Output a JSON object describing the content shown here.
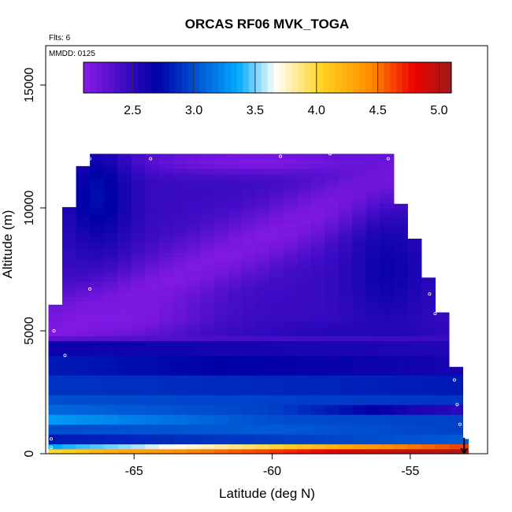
{
  "chart_data": {
    "type": "heatmap",
    "title": "ORCAS RF06 MVK_TOGA",
    "annotations": [
      "Flts: 6",
      "MMDD: 0125"
    ],
    "xlabel": "Latitude (deg N)",
    "ylabel": "Altitude (m)",
    "xlim": [
      -68.2,
      -52.2
    ],
    "ylim": [
      0,
      16600
    ],
    "x_ticks": [
      -65,
      -60,
      -55
    ],
    "x_tick_labels": [
      "-65",
      "-60",
      "-55"
    ],
    "y_ticks": [
      0,
      5000,
      10000,
      15000
    ],
    "y_tick_labels": [
      "0",
      "5000",
      "10000",
      "15000"
    ],
    "colorbar": {
      "range": [
        2.1,
        5.1
      ],
      "ticks": [
        2.5,
        3.0,
        3.5,
        4.0,
        4.5,
        5.0
      ],
      "tick_labels": [
        "2.5",
        "3.0",
        "3.5",
        "4.0",
        "4.5",
        "5.0"
      ],
      "colors": [
        "#8a1ae8",
        "#0000a8",
        "#00aaff",
        "#ffffff",
        "#ffd21e",
        "#ff8c00",
        "#ee0000",
        "#9e1a1a"
      ]
    },
    "grid": false,
    "domain": {
      "lat_start": -68.1,
      "lat_end": -52.9,
      "cell_lat": 0.5,
      "cell_alt": 200,
      "top_altitude_by_lat": [
        [
          -68.1,
          5000
        ],
        [
          -67.7,
          6700
        ],
        [
          -67.4,
          9800
        ],
        [
          -67.1,
          11200
        ],
        [
          -66.6,
          12200
        ],
        [
          -55.8,
          12200
        ],
        [
          -55.6,
          11000
        ],
        [
          -55.3,
          10000
        ],
        [
          -55.0,
          9200
        ],
        [
          -54.6,
          8000
        ],
        [
          -54.3,
          7000
        ],
        [
          -54.0,
          6200
        ],
        [
          -53.7,
          5300
        ],
        [
          -53.4,
          4000
        ],
        [
          -53.1,
          1200
        ],
        [
          -52.9,
          600
        ]
      ]
    },
    "flight_points": [
      {
        "lat": -66.6,
        "alt": 12000
      },
      {
        "lat": -64.4,
        "alt": 12000
      },
      {
        "lat": -59.7,
        "alt": 12100
      },
      {
        "lat": -57.9,
        "alt": 12200
      },
      {
        "lat": -55.8,
        "alt": 12000
      },
      {
        "lat": -55.5,
        "alt": 11000
      },
      {
        "lat": -66.6,
        "alt": 6700
      },
      {
        "lat": -67.5,
        "alt": 4000
      },
      {
        "lat": -67.9,
        "alt": 5000
      },
      {
        "lat": -54.3,
        "alt": 6500
      },
      {
        "lat": -54.1,
        "alt": 5700
      },
      {
        "lat": -53.4,
        "alt": 3000
      },
      {
        "lat": -53.3,
        "alt": 2000
      },
      {
        "lat": -53.2,
        "alt": 1200
      },
      {
        "lat": -68.0,
        "alt": 600
      },
      {
        "lat": -68.0,
        "alt": 250
      }
    ],
    "altitude_bands": [
      {
        "alt_min": 0,
        "alt_max": 250,
        "values_by_lat": [
          [
            -68,
            4.0
          ],
          [
            -66,
            4.25
          ],
          [
            -63,
            4.45
          ],
          [
            -60,
            4.65
          ],
          [
            -57,
            4.9
          ],
          [
            -53,
            5.05
          ]
        ]
      },
      {
        "alt_min": 250,
        "alt_max": 500,
        "values_by_lat": [
          [
            -68,
            3.35
          ],
          [
            -65,
            3.55
          ],
          [
            -62,
            3.8
          ],
          [
            -59,
            4.1
          ],
          [
            -56,
            4.4
          ],
          [
            -53,
            4.65
          ]
        ]
      },
      {
        "alt_min": 500,
        "alt_max": 800,
        "values_by_lat": [
          [
            -68,
            2.8
          ],
          [
            -62,
            2.9
          ],
          [
            -56,
            3.0
          ],
          [
            -53,
            3.05
          ]
        ]
      },
      {
        "alt_min": 800,
        "alt_max": 1200,
        "values_by_lat": [
          [
            -68,
            3.0
          ],
          [
            -60,
            3.05
          ],
          [
            -53,
            2.95
          ]
        ]
      },
      {
        "alt_min": 1200,
        "alt_max": 1600,
        "values_by_lat": [
          [
            -68,
            3.3
          ],
          [
            -64,
            3.15
          ],
          [
            -60,
            3.0
          ],
          [
            -53,
            2.95
          ]
        ]
      },
      {
        "alt_min": 1600,
        "alt_max": 2000,
        "values_by_lat": [
          [
            -68,
            3.1
          ],
          [
            -60,
            2.95
          ],
          [
            -55,
            2.6
          ],
          [
            -53,
            2.5
          ]
        ]
      },
      {
        "alt_min": 2000,
        "alt_max": 2500,
        "values_by_lat": [
          [
            -68,
            3.0
          ],
          [
            -60,
            2.95
          ],
          [
            -53,
            2.9
          ]
        ]
      },
      {
        "alt_min": 2500,
        "alt_max": 3200,
        "values_by_lat": [
          [
            -68,
            2.9
          ],
          [
            -60,
            2.85
          ],
          [
            -53,
            2.8
          ]
        ]
      },
      {
        "alt_min": 3200,
        "alt_max": 4000,
        "values_by_lat": [
          [
            -68,
            2.8
          ],
          [
            -62,
            2.7
          ],
          [
            -56,
            2.65
          ],
          [
            -53,
            2.6
          ]
        ]
      },
      {
        "alt_min": 4000,
        "alt_max": 4600,
        "values_by_lat": [
          [
            -68,
            2.65
          ],
          [
            -60,
            2.6
          ],
          [
            -53,
            2.55
          ]
        ]
      },
      {
        "alt_min": 4600,
        "alt_max": 4800,
        "values_by_lat": [
          [
            -68,
            2.3
          ],
          [
            -60,
            2.4
          ],
          [
            -53,
            2.45
          ]
        ]
      }
    ],
    "upper_field": {
      "alt_min": 4800,
      "background_value": 2.45,
      "features": [
        {
          "kind": "band",
          "lat0": -68.1,
          "alt0": 4800,
          "lat1": -54.0,
          "alt1": 12000,
          "width_alt": 1400,
          "value": 2.15
        },
        {
          "kind": "blob",
          "lat": -65.5,
          "alt": 5600,
          "r_lat": 2.8,
          "r_alt": 900,
          "value": 2.15
        },
        {
          "kind": "blob",
          "lat": -60.5,
          "alt": 11900,
          "r_lat": 4.5,
          "r_alt": 500,
          "value": 2.15
        },
        {
          "kind": "blob",
          "lat": -66.3,
          "alt": 10500,
          "r_lat": 1.2,
          "r_alt": 2200,
          "value": 2.75
        },
        {
          "kind": "blob",
          "lat": -55.8,
          "alt": 7500,
          "r_lat": 1.5,
          "r_alt": 2500,
          "value": 2.65
        },
        {
          "kind": "blob",
          "lat": -57.0,
          "alt": 4900,
          "r_lat": 3.5,
          "r_alt": 500,
          "value": 2.55
        }
      ]
    },
    "marker": {
      "lat": -53.05,
      "alt_from": 650,
      "alt_to": 0,
      "kind": "arrow"
    }
  }
}
